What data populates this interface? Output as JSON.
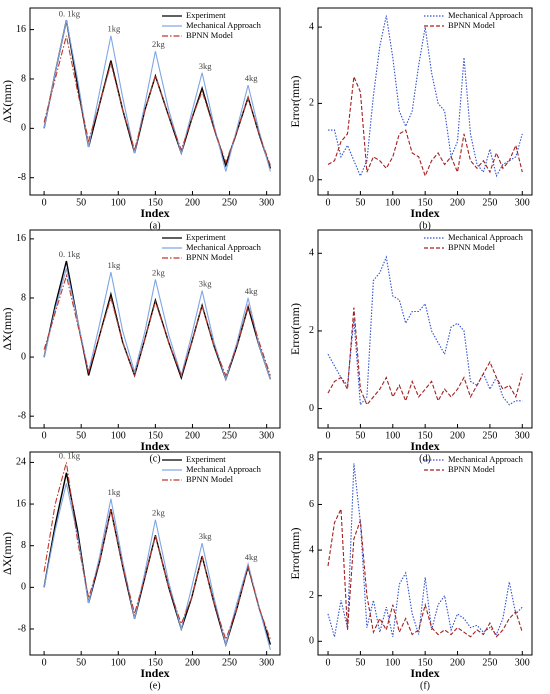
{
  "chart_data": [
    {
      "type": "line",
      "caption": "(a)",
      "xlabel": "Index",
      "ylabel": "ΔX(mm)",
      "x": [
        0,
        15,
        30,
        45,
        60,
        75,
        90,
        106,
        122,
        136,
        150,
        168,
        185,
        199,
        213,
        229,
        245,
        260,
        275,
        290,
        305
      ],
      "xlim": [
        -19,
        318
      ],
      "xticks": [
        0,
        50,
        100,
        150,
        200,
        250,
        300
      ],
      "ylim": [
        -10.8,
        19.5
      ],
      "yticks": [
        -8,
        0,
        8,
        16
      ],
      "legend": "upper right",
      "annotations": [
        "0. 1kg",
        "1kg",
        "2kg",
        "3kg",
        "4kg"
      ],
      "series": [
        {
          "name": "Experiment",
          "color": "#000000",
          "linestyle": "solid",
          "values": [
            0,
            9,
            17.5,
            7,
            -3,
            4,
            11,
            3,
            -4,
            3,
            8.5,
            2,
            -4,
            1.5,
            6.5,
            0,
            -6,
            -0.5,
            5,
            -1,
            -6.5
          ]
        },
        {
          "name": "Mechanical Approach",
          "color": "#7fa6e6",
          "linestyle": "solid",
          "values": [
            0,
            9,
            17.5,
            8,
            -3,
            6,
            15,
            5,
            -4,
            4,
            12.5,
            3,
            -4,
            2.5,
            9,
            0.5,
            -7,
            0,
            7,
            -0.5,
            -7
          ]
        },
        {
          "name": "BPNN Model",
          "color": "#c0392b",
          "linestyle": "dashdot",
          "values": [
            1,
            8,
            15,
            6,
            -2,
            4,
            10.5,
            3,
            -3.5,
            3,
            8.5,
            2,
            -3.5,
            1.5,
            6,
            0,
            -5.5,
            -0.5,
            5,
            -1,
            -6
          ]
        }
      ]
    },
    {
      "type": "line",
      "caption": "(b)",
      "xlabel": "Index",
      "ylabel": "Error(mm)",
      "x": [
        0,
        10,
        20,
        30,
        40,
        50,
        60,
        70,
        80,
        90,
        100,
        110,
        120,
        130,
        140,
        150,
        160,
        170,
        180,
        190,
        200,
        210,
        220,
        230,
        240,
        250,
        260,
        270,
        280,
        290,
        300
      ],
      "xlim": [
        -15.5,
        315
      ],
      "xticks": [
        0,
        50,
        100,
        150,
        200,
        250,
        300
      ],
      "ylim": [
        -0.4,
        4.5
      ],
      "yticks": [
        0,
        2,
        4
      ],
      "legend": "upper right",
      "series": [
        {
          "name": "Mechanical Approach",
          "color": "#3050d0",
          "linestyle": "dotted",
          "values": [
            1.3,
            1.3,
            0.6,
            0.9,
            0.5,
            0.1,
            0.5,
            2.2,
            3.5,
            4.3,
            3.2,
            1.8,
            1.4,
            1.8,
            3.0,
            4.0,
            2.8,
            2.0,
            1.8,
            0.6,
            1.0,
            3.2,
            1.2,
            0.4,
            0.2,
            0.8,
            0.1,
            0.4,
            0.5,
            0.6,
            1.2
          ]
        },
        {
          "name": "BPNN Model",
          "color": "#a32020",
          "linestyle": "dashed",
          "values": [
            0.4,
            0.5,
            1.0,
            1.2,
            2.7,
            2.3,
            0.2,
            0.6,
            0.5,
            0.3,
            0.6,
            1.2,
            1.3,
            0.7,
            0.6,
            0.1,
            0.5,
            0.7,
            0.4,
            0.6,
            0.2,
            1.2,
            0.5,
            0.3,
            0.5,
            0.2,
            0.7,
            0.3,
            0.5,
            0.9,
            0.2
          ]
        }
      ]
    },
    {
      "type": "line",
      "caption": "(c)",
      "xlabel": "Index",
      "ylabel": "ΔX(mm)",
      "x": [
        0,
        15,
        30,
        45,
        60,
        75,
        90,
        106,
        122,
        136,
        150,
        168,
        185,
        199,
        213,
        229,
        245,
        260,
        275,
        290,
        305
      ],
      "xlim": [
        -19,
        318
      ],
      "xticks": [
        0,
        50,
        100,
        150,
        200,
        250,
        300
      ],
      "ylim": [
        -9.6,
        17.2
      ],
      "yticks": [
        -8,
        0,
        8,
        16
      ],
      "legend": "upper right",
      "annotations": [
        "0. 1kg",
        "1kg",
        "2kg",
        "3kg",
        "4kg"
      ],
      "series": [
        {
          "name": "Experiment",
          "color": "#000000",
          "linestyle": "solid",
          "values": [
            0,
            7,
            13,
            5,
            -2.5,
            3,
            8.5,
            2,
            -2.5,
            2.5,
            7.7,
            2,
            -2.8,
            2,
            7,
            1.5,
            -3,
            1.5,
            6.8,
            1.5,
            -3
          ]
        },
        {
          "name": "Mechanical Approach",
          "color": "#7fa6e6",
          "linestyle": "solid",
          "values": [
            0,
            6.5,
            12,
            5,
            -2,
            4.5,
            11.5,
            3.5,
            -2,
            3.5,
            10.5,
            3,
            -2.5,
            3,
            9,
            2,
            -3,
            2,
            8,
            1.5,
            -3
          ]
        },
        {
          "name": "BPNN Model",
          "color": "#c0392b",
          "linestyle": "dashdot",
          "values": [
            1,
            6,
            11,
            4.5,
            -2,
            3,
            8,
            2,
            -2.5,
            2.5,
            7.5,
            2,
            -2.5,
            2,
            7,
            1.5,
            -2.5,
            1.5,
            7,
            2,
            -2.5
          ]
        }
      ]
    },
    {
      "type": "line",
      "caption": "(d)",
      "xlabel": "Index",
      "ylabel": "Error(mm)",
      "x": [
        0,
        10,
        20,
        30,
        40,
        50,
        60,
        70,
        80,
        90,
        100,
        110,
        120,
        130,
        140,
        150,
        160,
        170,
        180,
        190,
        200,
        210,
        220,
        230,
        240,
        250,
        260,
        270,
        280,
        290,
        300
      ],
      "xlim": [
        -15.5,
        315
      ],
      "xticks": [
        0,
        50,
        100,
        150,
        200,
        250,
        300
      ],
      "ylim": [
        -0.5,
        4.6
      ],
      "yticks": [
        0,
        2,
        4
      ],
      "legend": "upper right",
      "series": [
        {
          "name": "Mechanical Approach",
          "color": "#3050d0",
          "linestyle": "dotted",
          "values": [
            1.4,
            1.1,
            0.8,
            0.6,
            2.3,
            0.1,
            0.3,
            3.3,
            3.5,
            3.9,
            2.9,
            2.8,
            2.2,
            2.5,
            2.5,
            2.7,
            2.0,
            1.7,
            1.4,
            2.1,
            2.2,
            2.0,
            0.7,
            0.6,
            0.9,
            0.5,
            0.8,
            0.3,
            0.1,
            0.2,
            0.2
          ]
        },
        {
          "name": "BPNN Model",
          "color": "#a32020",
          "linestyle": "dashed",
          "values": [
            0.4,
            0.7,
            0.8,
            0.5,
            2.6,
            0.5,
            0.1,
            0.3,
            0.5,
            0.8,
            0.3,
            0.6,
            0.2,
            0.7,
            0.3,
            0.5,
            0.7,
            0.2,
            0.5,
            0.3,
            0.5,
            0.8,
            0.3,
            0.6,
            0.9,
            1.2,
            0.8,
            0.5,
            0.6,
            0.3,
            0.9
          ]
        }
      ]
    },
    {
      "type": "line",
      "caption": "(e)",
      "xlabel": "Index",
      "ylabel": "ΔX(mm)",
      "x": [
        0,
        15,
        30,
        45,
        60,
        75,
        90,
        106,
        122,
        136,
        150,
        168,
        185,
        199,
        213,
        229,
        245,
        260,
        275,
        290,
        305
      ],
      "xlim": [
        -19,
        318
      ],
      "xticks": [
        0,
        50,
        100,
        150,
        200,
        250,
        300
      ],
      "ylim": [
        -13,
        26
      ],
      "yticks": [
        -8,
        0,
        8,
        16,
        24
      ],
      "legend": "upper right",
      "annotations": [
        "0. 1kg",
        "1kg",
        "2kg",
        "3kg",
        "4kg"
      ],
      "series": [
        {
          "name": "Experiment",
          "color": "#000000",
          "linestyle": "solid",
          "values": [
            0,
            12,
            22,
            11,
            -3,
            5,
            15,
            4,
            -6,
            2,
            10,
            0,
            -8,
            -2,
            6,
            -3,
            -11,
            -4,
            4,
            -4,
            -11
          ]
        },
        {
          "name": "Mechanical Approach",
          "color": "#7fa6e6",
          "linestyle": "solid",
          "values": [
            0,
            11,
            20,
            10,
            -3,
            6,
            17,
            5,
            -6,
            3,
            13,
            1,
            -8,
            0,
            8.5,
            -2,
            -11,
            -3,
            4.5,
            -4,
            -12
          ]
        },
        {
          "name": "BPNN Model",
          "color": "#c0392b",
          "linestyle": "dashdot",
          "values": [
            3,
            16,
            24,
            9,
            -2,
            5,
            15,
            4,
            -5,
            2,
            10,
            0,
            -7,
            -2,
            6,
            -3,
            -10,
            -4,
            4,
            -4,
            -10
          ]
        }
      ]
    },
    {
      "type": "line",
      "caption": "(f)",
      "xlabel": "Index",
      "ylabel": "Error(mm)",
      "x": [
        0,
        10,
        20,
        30,
        40,
        50,
        60,
        70,
        80,
        90,
        100,
        110,
        120,
        130,
        140,
        150,
        160,
        170,
        180,
        190,
        200,
        210,
        220,
        230,
        240,
        250,
        260,
        270,
        280,
        290,
        300
      ],
      "xlim": [
        -15.5,
        315
      ],
      "xticks": [
        0,
        50,
        100,
        150,
        200,
        250,
        300
      ],
      "ylim": [
        -0.6,
        8.3
      ],
      "yticks": [
        0,
        2,
        4,
        6,
        8
      ],
      "legend": "upper right",
      "series": [
        {
          "name": "Mechanical Approach",
          "color": "#3050d0",
          "linestyle": "dotted",
          "values": [
            1.2,
            0.2,
            1.8,
            0.6,
            7.8,
            5.2,
            0.6,
            1.8,
            0.4,
            1.5,
            0.2,
            2.5,
            3.0,
            1.2,
            0.3,
            2.8,
            0.5,
            1.6,
            2.0,
            0.5,
            1.2,
            1.0,
            0.6,
            0.7,
            0.4,
            0.6,
            0.3,
            1.0,
            2.6,
            1.2,
            1.5
          ]
        },
        {
          "name": "BPNN Model",
          "color": "#a32020",
          "linestyle": "dashed",
          "values": [
            3.3,
            5.2,
            5.8,
            0.5,
            4.5,
            5.3,
            2.0,
            0.4,
            1.0,
            0.5,
            1.6,
            0.4,
            1.0,
            0.3,
            0.5,
            1.6,
            0.6,
            0.3,
            0.5,
            0.3,
            0.6,
            0.4,
            0.2,
            0.5,
            0.3,
            0.8,
            0.2,
            0.5,
            1.0,
            1.3,
            0.4
          ]
        }
      ]
    }
  ]
}
